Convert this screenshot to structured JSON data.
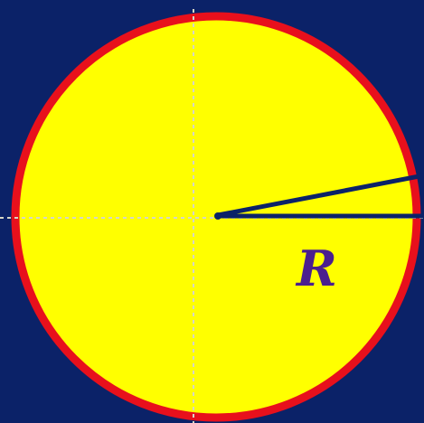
{
  "diagram": {
    "radius_label": "R",
    "colors": {
      "background": "#0b2268",
      "disk_fill": "#ffff00",
      "rim": "#e8101c",
      "axes": "#d6d6c6",
      "radius_line": "#0b2268",
      "label": "#4b1f8e"
    }
  }
}
